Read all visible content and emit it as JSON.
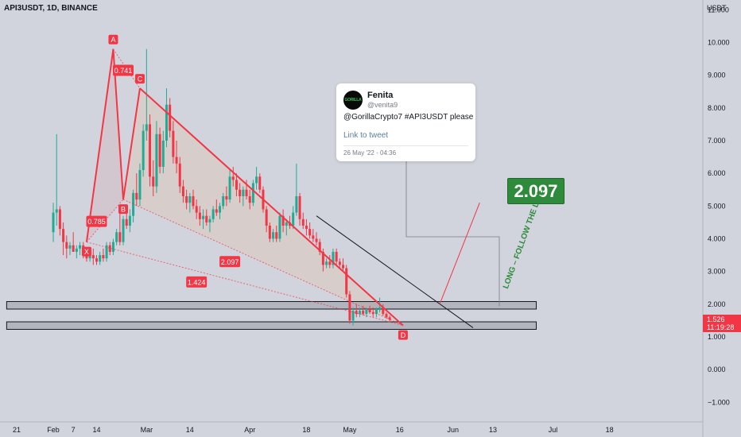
{
  "header": {
    "symbol": "API3USDT, 1D, BINANCE"
  },
  "axis": {
    "unit": "USDT"
  },
  "tweet": {
    "avatar_text": "GORILLA",
    "name": "Fenita",
    "handle": "@venita9",
    "text": "@GorillaCrypto7  #API3USDT please",
    "link": "Link to tweet",
    "date": "26 May '22 - 04:36"
  },
  "annotations": {
    "target": "2.097",
    "follow_line": "LONG – FOLLOW THE LINE",
    "current_price": "1.526",
    "countdown": "11:19:28"
  },
  "colors": {
    "up": "#22ab94",
    "down": "#f23645",
    "pattern": "#f23645",
    "target_box": "#2e8b3b",
    "background": "#d1d4dc"
  },
  "chart_data": {
    "type": "candlestick",
    "y_ticks": [
      "11.000",
      "10.000",
      "9.000",
      "8.000",
      "7.000",
      "6.000",
      "5.000",
      "4.000",
      "3.000",
      "2.000",
      "1.000",
      "0.000",
      "−1.000"
    ],
    "y_tick_values": [
      11,
      10,
      9,
      8,
      7,
      6,
      5,
      4,
      3,
      2,
      1,
      0,
      -1
    ],
    "ylim": [
      -1.6,
      11.3
    ],
    "x_ticks": [
      "21",
      "Feb",
      "7",
      "14",
      "Mar",
      "14",
      "Apr",
      "18",
      "May",
      "16",
      "Jun",
      "13",
      "Jul",
      "18"
    ],
    "x_tick_days": [
      -11,
      0,
      6,
      13,
      28,
      41,
      59,
      76,
      89,
      104,
      120,
      132,
      150,
      167
    ],
    "xlim": [
      -16,
      195
    ],
    "harmonic": {
      "points": [
        {
          "label": "X",
          "day": 10,
          "price": 3.9
        },
        {
          "label": "A",
          "day": 18,
          "price": 9.8
        },
        {
          "label": "B",
          "day": 21,
          "price": 5.2
        },
        {
          "label": "C",
          "day": 26,
          "price": 8.6
        },
        {
          "label": "D",
          "day": 105,
          "price": 1.35
        }
      ],
      "ratios": [
        {
          "text": "0.741",
          "day": 21,
          "price": 9.15
        },
        {
          "text": "0.785",
          "day": 13,
          "price": 4.53
        },
        {
          "text": "2.097",
          "day": 53,
          "price": 3.3
        },
        {
          "text": "1.424",
          "day": 43,
          "price": 2.68
        }
      ]
    },
    "support_zones": [
      {
        "low": 1.85,
        "high": 2.08,
        "from_day": -14,
        "to_day": 145
      },
      {
        "low": 1.23,
        "high": 1.46,
        "from_day": -14,
        "to_day": 145
      }
    ],
    "trendline": {
      "from_day": 79,
      "from_price": 4.7,
      "to_day": 126,
      "to_price": 1.28
    },
    "target_line": {
      "from_day": 116,
      "from_price": 2.0,
      "to_day": 128,
      "to_price": 5.1
    },
    "candles": [
      {
        "o": 4.2,
        "h": 5.1,
        "l": 3.9,
        "c": 4.8
      },
      {
        "o": 4.8,
        "h": 7.2,
        "l": 4.4,
        "c": 4.9
      },
      {
        "o": 4.9,
        "h": 5.0,
        "l": 4.1,
        "c": 4.3
      },
      {
        "o": 4.3,
        "h": 4.5,
        "l": 3.5,
        "c": 3.9
      },
      {
        "o": 3.9,
        "h": 4.1,
        "l": 3.4,
        "c": 3.7
      },
      {
        "o": 3.7,
        "h": 3.9,
        "l": 3.5,
        "c": 3.8
      },
      {
        "o": 3.8,
        "h": 4.2,
        "l": 3.6,
        "c": 3.6
      },
      {
        "o": 3.6,
        "h": 3.8,
        "l": 3.4,
        "c": 3.7
      },
      {
        "o": 3.7,
        "h": 3.9,
        "l": 3.5,
        "c": 3.8
      },
      {
        "o": 3.8,
        "h": 3.9,
        "l": 3.4,
        "c": 3.5
      },
      {
        "o": 3.5,
        "h": 3.6,
        "l": 3.3,
        "c": 3.4
      },
      {
        "o": 3.4,
        "h": 3.6,
        "l": 3.3,
        "c": 3.5
      },
      {
        "o": 3.5,
        "h": 3.7,
        "l": 3.2,
        "c": 3.4
      },
      {
        "o": 3.4,
        "h": 3.5,
        "l": 3.2,
        "c": 3.3
      },
      {
        "o": 3.3,
        "h": 3.6,
        "l": 3.2,
        "c": 3.5
      },
      {
        "o": 3.5,
        "h": 3.7,
        "l": 3.3,
        "c": 3.4
      },
      {
        "o": 3.4,
        "h": 3.9,
        "l": 3.3,
        "c": 3.8
      },
      {
        "o": 3.8,
        "h": 3.9,
        "l": 3.5,
        "c": 3.6
      },
      {
        "o": 3.6,
        "h": 4.0,
        "l": 3.5,
        "c": 3.9
      },
      {
        "o": 3.9,
        "h": 4.3,
        "l": 3.8,
        "c": 4.2
      },
      {
        "o": 4.2,
        "h": 4.8,
        "l": 3.8,
        "c": 3.9
      },
      {
        "o": 3.9,
        "h": 4.7,
        "l": 3.8,
        "c": 4.6
      },
      {
        "o": 4.6,
        "h": 5.0,
        "l": 4.3,
        "c": 4.4
      },
      {
        "o": 4.4,
        "h": 4.9,
        "l": 4.2,
        "c": 4.7
      },
      {
        "o": 4.7,
        "h": 5.5,
        "l": 4.5,
        "c": 5.4
      },
      {
        "o": 5.4,
        "h": 6.0,
        "l": 5.0,
        "c": 5.2
      },
      {
        "o": 5.2,
        "h": 6.3,
        "l": 5.0,
        "c": 6.1
      },
      {
        "o": 6.1,
        "h": 7.5,
        "l": 5.9,
        "c": 7.3
      },
      {
        "o": 7.3,
        "h": 9.8,
        "l": 7.0,
        "c": 7.5
      },
      {
        "o": 7.5,
        "h": 7.8,
        "l": 5.6,
        "c": 5.9
      },
      {
        "o": 5.9,
        "h": 6.4,
        "l": 5.3,
        "c": 5.6
      },
      {
        "o": 5.6,
        "h": 7.6,
        "l": 5.4,
        "c": 7.2
      },
      {
        "o": 7.2,
        "h": 7.4,
        "l": 6.0,
        "c": 6.2
      },
      {
        "o": 6.2,
        "h": 7.3,
        "l": 6.0,
        "c": 7.0
      },
      {
        "o": 7.0,
        "h": 8.6,
        "l": 6.8,
        "c": 8.1
      },
      {
        "o": 8.1,
        "h": 8.3,
        "l": 7.1,
        "c": 7.3
      },
      {
        "o": 7.3,
        "h": 7.6,
        "l": 6.3,
        "c": 6.5
      },
      {
        "o": 6.5,
        "h": 7.0,
        "l": 6.0,
        "c": 6.3
      },
      {
        "o": 6.3,
        "h": 6.5,
        "l": 5.4,
        "c": 5.6
      },
      {
        "o": 5.6,
        "h": 5.8,
        "l": 5.1,
        "c": 5.3
      },
      {
        "o": 5.3,
        "h": 5.5,
        "l": 4.9,
        "c": 5.1
      },
      {
        "o": 5.1,
        "h": 5.4,
        "l": 4.8,
        "c": 5.3
      },
      {
        "o": 5.3,
        "h": 5.5,
        "l": 4.9,
        "c": 5.0
      },
      {
        "o": 5.0,
        "h": 5.2,
        "l": 4.6,
        "c": 4.8
      },
      {
        "o": 4.8,
        "h": 5.0,
        "l": 4.4,
        "c": 4.6
      },
      {
        "o": 4.6,
        "h": 4.9,
        "l": 4.3,
        "c": 4.7
      },
      {
        "o": 4.7,
        "h": 4.9,
        "l": 4.4,
        "c": 4.5
      },
      {
        "o": 4.5,
        "h": 4.7,
        "l": 4.2,
        "c": 4.6
      },
      {
        "o": 4.6,
        "h": 5.0,
        "l": 4.5,
        "c": 4.9
      },
      {
        "o": 4.9,
        "h": 5.2,
        "l": 4.7,
        "c": 4.8
      },
      {
        "o": 4.8,
        "h": 5.1,
        "l": 4.6,
        "c": 5.0
      },
      {
        "o": 5.0,
        "h": 5.4,
        "l": 4.9,
        "c": 5.3
      },
      {
        "o": 5.3,
        "h": 5.6,
        "l": 5.0,
        "c": 5.2
      },
      {
        "o": 5.2,
        "h": 6.1,
        "l": 5.1,
        "c": 5.9
      },
      {
        "o": 5.9,
        "h": 6.2,
        "l": 5.6,
        "c": 5.8
      },
      {
        "o": 5.8,
        "h": 6.0,
        "l": 5.3,
        "c": 5.5
      },
      {
        "o": 5.5,
        "h": 5.7,
        "l": 5.1,
        "c": 5.3
      },
      {
        "o": 5.3,
        "h": 5.6,
        "l": 5.0,
        "c": 5.5
      },
      {
        "o": 5.5,
        "h": 5.8,
        "l": 5.2,
        "c": 5.3
      },
      {
        "o": 5.3,
        "h": 5.5,
        "l": 4.9,
        "c": 5.1
      },
      {
        "o": 5.1,
        "h": 5.8,
        "l": 5.0,
        "c": 5.7
      },
      {
        "o": 5.7,
        "h": 6.2,
        "l": 5.5,
        "c": 5.9
      },
      {
        "o": 5.9,
        "h": 6.0,
        "l": 5.4,
        "c": 5.5
      },
      {
        "o": 5.5,
        "h": 5.6,
        "l": 4.8,
        "c": 4.9
      },
      {
        "o": 4.9,
        "h": 5.0,
        "l": 4.2,
        "c": 4.4
      },
      {
        "o": 4.4,
        "h": 4.5,
        "l": 3.9,
        "c": 4.0
      },
      {
        "o": 4.0,
        "h": 4.3,
        "l": 3.9,
        "c": 4.2
      },
      {
        "o": 4.2,
        "h": 4.4,
        "l": 3.9,
        "c": 4.0
      },
      {
        "o": 4.0,
        "h": 4.8,
        "l": 3.9,
        "c": 4.7
      },
      {
        "o": 4.7,
        "h": 4.9,
        "l": 4.2,
        "c": 4.4
      },
      {
        "o": 4.4,
        "h": 4.6,
        "l": 4.1,
        "c": 4.5
      },
      {
        "o": 4.5,
        "h": 4.7,
        "l": 4.3,
        "c": 4.4
      },
      {
        "o": 4.4,
        "h": 5.0,
        "l": 4.3,
        "c": 4.8
      },
      {
        "o": 4.8,
        "h": 6.3,
        "l": 4.7,
        "c": 5.3
      },
      {
        "o": 5.3,
        "h": 5.4,
        "l": 4.4,
        "c": 4.6
      },
      {
        "o": 4.6,
        "h": 4.8,
        "l": 4.3,
        "c": 4.4
      },
      {
        "o": 4.4,
        "h": 4.6,
        "l": 4.1,
        "c": 4.3
      },
      {
        "o": 4.3,
        "h": 4.5,
        "l": 4.0,
        "c": 4.1
      },
      {
        "o": 4.1,
        "h": 4.3,
        "l": 3.9,
        "c": 4.0
      },
      {
        "o": 4.0,
        "h": 4.2,
        "l": 3.8,
        "c": 3.9
      },
      {
        "o": 3.9,
        "h": 4.0,
        "l": 3.5,
        "c": 3.6
      },
      {
        "o": 3.6,
        "h": 3.7,
        "l": 3.0,
        "c": 3.2
      },
      {
        "o": 3.2,
        "h": 3.4,
        "l": 3.1,
        "c": 3.3
      },
      {
        "o": 3.3,
        "h": 3.5,
        "l": 3.1,
        "c": 3.2
      },
      {
        "o": 3.2,
        "h": 3.7,
        "l": 3.1,
        "c": 3.6
      },
      {
        "o": 3.6,
        "h": 3.7,
        "l": 3.2,
        "c": 3.3
      },
      {
        "o": 3.3,
        "h": 3.4,
        "l": 3.1,
        "c": 3.2
      },
      {
        "o": 3.2,
        "h": 3.4,
        "l": 3.0,
        "c": 3.1
      },
      {
        "o": 3.1,
        "h": 3.2,
        "l": 2.2,
        "c": 2.3
      },
      {
        "o": 2.3,
        "h": 2.4,
        "l": 1.4,
        "c": 1.5
      },
      {
        "o": 1.5,
        "h": 1.9,
        "l": 1.35,
        "c": 1.8
      },
      {
        "o": 1.8,
        "h": 2.0,
        "l": 1.6,
        "c": 1.7
      },
      {
        "o": 1.7,
        "h": 1.9,
        "l": 1.6,
        "c": 1.8
      },
      {
        "o": 1.8,
        "h": 1.95,
        "l": 1.65,
        "c": 1.7
      },
      {
        "o": 1.7,
        "h": 1.9,
        "l": 1.6,
        "c": 1.85
      },
      {
        "o": 1.85,
        "h": 1.95,
        "l": 1.7,
        "c": 1.75
      },
      {
        "o": 1.75,
        "h": 1.9,
        "l": 1.6,
        "c": 1.7
      },
      {
        "o": 1.7,
        "h": 1.9,
        "l": 1.6,
        "c": 1.85
      },
      {
        "o": 1.85,
        "h": 2.2,
        "l": 1.75,
        "c": 1.9
      },
      {
        "o": 1.9,
        "h": 2.0,
        "l": 1.65,
        "c": 1.7
      },
      {
        "o": 1.7,
        "h": 1.75,
        "l": 1.55,
        "c": 1.6
      },
      {
        "o": 1.6,
        "h": 1.65,
        "l": 1.45,
        "c": 1.526
      }
    ]
  }
}
